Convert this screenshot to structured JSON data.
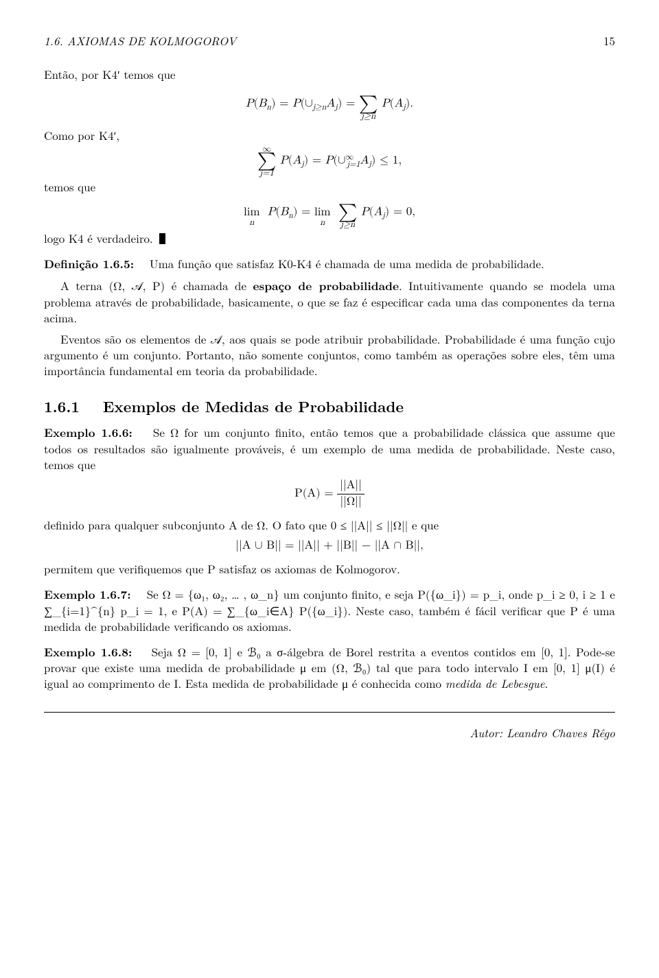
{
  "header": {
    "section": "1.6.  AXIOMAS DE KOLMOGOROV",
    "page": "15"
  },
  "p1": "Então, por K4′ temos que",
  "eq1": "P(B_n) = P(∪_{j≥n} A_j) = ∑_{j≥n} P(A_j).",
  "p2a": "Como por K4′,",
  "eq2": "∑_{j=1}^{∞} P(A_j) = P(∪_{j=1}^{∞} A_j) ≤ 1,",
  "p2b": "temos que",
  "eq3": "lim_n P(B_n) = lim_n ∑_{j≥n} P(A_j) = 0,",
  "p2c": "logo K4 é verdadeiro.",
  "def": {
    "head": "Definição 1.6.5:",
    "body": "Uma função que satisfaz K0-K4 é chamada de uma medida de probabilidade."
  },
  "p3_pre": "A terna (Ω, 𝒜, P) é chamada de ",
  "p3_bold": "espaço de probabilidade",
  "p3_post": ". Intuitivamente quando se modela uma problema através de probabilidade, basicamente, o que se faz é especificar cada uma das componentes da terna acima.",
  "p4": "Eventos são os elementos de 𝒜, aos quais se pode atribuir probabilidade. Probabilidade é uma função cujo argumento é um conjunto. Portanto, não somente conjuntos, como também as operações sobre eles, têm uma importância fundamental em teoria da probabilidade.",
  "subsection": {
    "num": "1.6.1",
    "title": "Exemplos de Medidas de Probabilidade"
  },
  "ex166": {
    "head": "Exemplo 1.6.6:",
    "body": "Se Ω for um conjunto finito, então temos que a probabilidade clássica que assume que todos os resultados são igualmente prováveis, é um exemplo de uma medida de probabilidade. Neste caso, temos que"
  },
  "eq4_num": "||A||",
  "eq4_den": "||Ω||",
  "eq4_lhs": "P(A) = ",
  "p5": "definido para qualquer subconjunto A de Ω. O fato que 0 ≤ ||A|| ≤ ||Ω|| e que",
  "eq5": "||A ∪ B|| = ||A|| + ||B|| − ||A ∩ B||,",
  "p6": "permitem que verifiquemos que P satisfaz os axiomas de Kolmogorov.",
  "ex167": {
    "head": "Exemplo 1.6.7:",
    "body_a": "Se Ω = {ω₁, ω₂, … , ω_n} um conjunto finito, e seja P({ω_i}) = p_i, onde p_i ≥ 0, i ≥ 1 e ∑_{i=1}^{n} p_i = 1, e P(A) = ∑_{ω_i∈A} P({ω_i}). Neste caso, também é fácil verificar que P é uma medida de probabilidade verificando os axiomas."
  },
  "ex168": {
    "head": "Exemplo 1.6.8:",
    "body_a": "Seja Ω = [0, 1] e ℬ₀ a σ-álgebra de Borel restrita a eventos contidos em [0, 1]. Pode-se provar que existe uma medida de probabilidade μ em (Ω, ℬ₀) tal que para todo intervalo I em [0, 1] μ(I) é igual ao comprimento de I. Esta medida de probabilidade μ é conhecida como ",
    "body_it": "medida de Lebesgue",
    "body_b": "."
  },
  "footer": "Autor: Leandro Chaves Rêgo"
}
